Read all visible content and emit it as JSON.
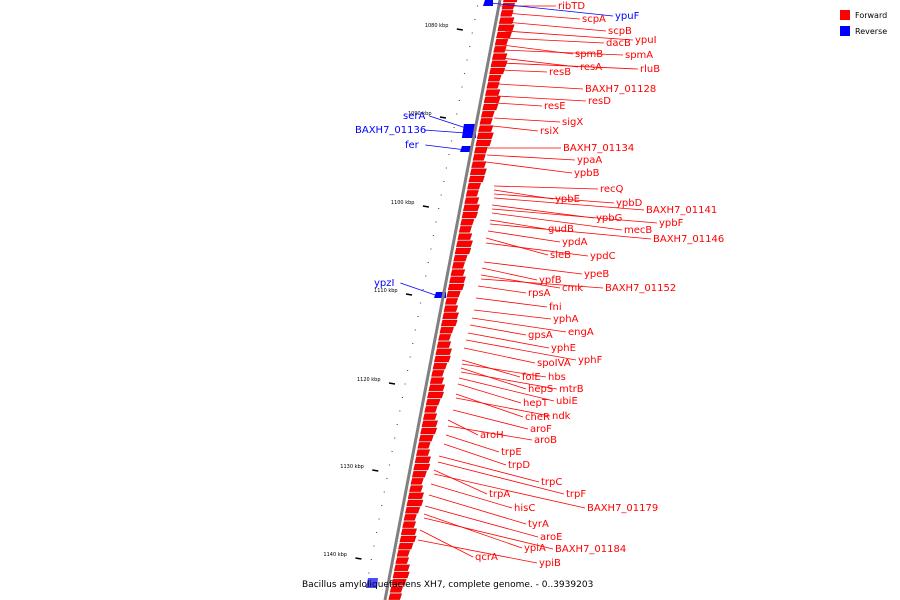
{
  "colors": {
    "forward": "#ff0000",
    "reverse": "#0000ff",
    "axis": "#808080",
    "tick": "#000000"
  },
  "legend": [
    {
      "label": "Forward",
      "color": "#ff0000"
    },
    {
      "label": "Reverse",
      "color": "#0000ff"
    }
  ],
  "caption": "Bacillus amyloliquefaciens XH7, complete genome. - 0..3939203",
  "ticks": [
    "1080 kbp",
    "1090 kbp",
    "1100 kbp",
    "1110 kbp",
    "1120 kbp",
    "1130 kbp",
    "1140 kbp"
  ],
  "genes": [
    {
      "name": "ribTD",
      "strand": "forward"
    },
    {
      "name": "ypuF",
      "strand": "reverse"
    },
    {
      "name": "scpA",
      "strand": "forward"
    },
    {
      "name": "scpB",
      "strand": "forward"
    },
    {
      "name": "ypuI",
      "strand": "forward"
    },
    {
      "name": "dacB",
      "strand": "forward"
    },
    {
      "name": "spmB",
      "strand": "forward"
    },
    {
      "name": "spmA",
      "strand": "forward"
    },
    {
      "name": "resA",
      "strand": "forward"
    },
    {
      "name": "rluB",
      "strand": "forward"
    },
    {
      "name": "resB",
      "strand": "forward"
    },
    {
      "name": "BAXH7_01128",
      "strand": "forward"
    },
    {
      "name": "resD",
      "strand": "forward"
    },
    {
      "name": "resE",
      "strand": "forward"
    },
    {
      "name": "serA",
      "strand": "reverse"
    },
    {
      "name": "sigX",
      "strand": "forward"
    },
    {
      "name": "BAXH7_01136",
      "strand": "reverse"
    },
    {
      "name": "rsiX",
      "strand": "forward"
    },
    {
      "name": "fer",
      "strand": "reverse"
    },
    {
      "name": "BAXH7_01134",
      "strand": "forward"
    },
    {
      "name": "ypaA",
      "strand": "forward"
    },
    {
      "name": "ypbB",
      "strand": "forward"
    },
    {
      "name": "recQ",
      "strand": "forward"
    },
    {
      "name": "ypbE",
      "strand": "forward"
    },
    {
      "name": "ypbD",
      "strand": "forward"
    },
    {
      "name": "BAXH7_01141",
      "strand": "forward"
    },
    {
      "name": "ypbG",
      "strand": "forward"
    },
    {
      "name": "ypbF",
      "strand": "forward"
    },
    {
      "name": "mecB",
      "strand": "forward"
    },
    {
      "name": "gudB",
      "strand": "forward"
    },
    {
      "name": "BAXH7_01146",
      "strand": "forward"
    },
    {
      "name": "ypdA",
      "strand": "forward"
    },
    {
      "name": "sleB",
      "strand": "forward"
    },
    {
      "name": "ypdC",
      "strand": "forward"
    },
    {
      "name": "ypeB",
      "strand": "forward"
    },
    {
      "name": "ypfB",
      "strand": "forward"
    },
    {
      "name": "cmk",
      "strand": "forward"
    },
    {
      "name": "BAXH7_01152",
      "strand": "forward"
    },
    {
      "name": "ypzI",
      "strand": "reverse"
    },
    {
      "name": "rpsA",
      "strand": "forward"
    },
    {
      "name": "fni",
      "strand": "forward"
    },
    {
      "name": "yphA",
      "strand": "forward"
    },
    {
      "name": "engA",
      "strand": "forward"
    },
    {
      "name": "gpsA",
      "strand": "forward"
    },
    {
      "name": "yphE",
      "strand": "forward"
    },
    {
      "name": "yphF",
      "strand": "forward"
    },
    {
      "name": "spoIVA",
      "strand": "forward"
    },
    {
      "name": "folE",
      "strand": "forward"
    },
    {
      "name": "hbs",
      "strand": "forward"
    },
    {
      "name": "hepS",
      "strand": "forward"
    },
    {
      "name": "mtrB",
      "strand": "forward"
    },
    {
      "name": "ubiE",
      "strand": "forward"
    },
    {
      "name": "hepT",
      "strand": "forward"
    },
    {
      "name": "cheR",
      "strand": "forward"
    },
    {
      "name": "ndk",
      "strand": "forward"
    },
    {
      "name": "aroF",
      "strand": "forward"
    },
    {
      "name": "aroH",
      "strand": "forward"
    },
    {
      "name": "aroB",
      "strand": "forward"
    },
    {
      "name": "trpE",
      "strand": "forward"
    },
    {
      "name": "trpD",
      "strand": "forward"
    },
    {
      "name": "trpC",
      "strand": "forward"
    },
    {
      "name": "trpF",
      "strand": "forward"
    },
    {
      "name": "trpA",
      "strand": "forward"
    },
    {
      "name": "BAXH7_01179",
      "strand": "forward"
    },
    {
      "name": "hisC",
      "strand": "forward"
    },
    {
      "name": "tyrA",
      "strand": "forward"
    },
    {
      "name": "aroE",
      "strand": "forward"
    },
    {
      "name": "ypiA",
      "strand": "forward"
    },
    {
      "name": "BAXH7_01184",
      "strand": "forward"
    },
    {
      "name": "qcrA",
      "strand": "forward"
    },
    {
      "name": "ypiB",
      "strand": "forward"
    }
  ]
}
